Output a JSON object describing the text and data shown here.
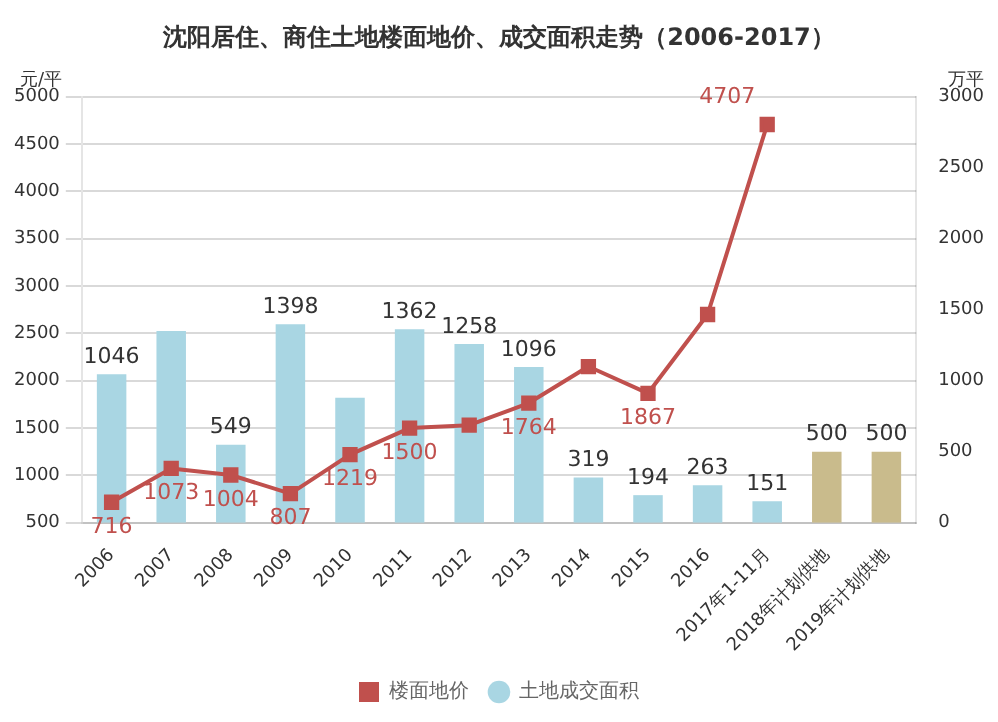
{
  "chart_data": {
    "type": "bar",
    "title": "沈阳居住、商住土地楼面地价、成交面积走势（2006-2017）",
    "ylabel": "元/平",
    "y2label": "万平",
    "categories": [
      "2006",
      "2007",
      "2008",
      "2009",
      "2010",
      "2011",
      "2012",
      "2013",
      "2014",
      "2015",
      "2016",
      "2017年1-11月",
      "2018年计划供地",
      "2019年计划供地"
    ],
    "series": [
      {
        "name": "土地成交面积",
        "axis": "y2",
        "colors": [
          "#a9d6e3",
          "#a9d6e3",
          "#a9d6e3",
          "#a9d6e3",
          "#a9d6e3",
          "#a9d6e3",
          "#a9d6e3",
          "#a9d6e3",
          "#a9d6e3",
          "#a9d6e3",
          "#a9d6e3",
          "#a9d6e3",
          "#c9bb8c",
          "#c9bb8c"
        ],
        "values": [
          1046,
          1350,
          549,
          1398,
          880,
          1362,
          1258,
          1096,
          319,
          194,
          263,
          151,
          500,
          500
        ],
        "value_labels": [
          "1046",
          null,
          "549",
          "1398",
          null,
          "1362",
          "1258",
          "1096",
          "319",
          "194",
          "263",
          "151",
          "500",
          "500"
        ]
      },
      {
        "name": "楼面地价",
        "type": "line",
        "axis": "y",
        "color": "#c0504d",
        "values": [
          716,
          1073,
          1004,
          807,
          1219,
          1500,
          1530,
          1764,
          2150,
          1867,
          2700,
          4707,
          null,
          null
        ],
        "value_labels": [
          "716",
          "1073",
          "1004",
          "807",
          "1219",
          "1500",
          null,
          "1764",
          null,
          "1867",
          null,
          "4707",
          null,
          null
        ]
      }
    ],
    "ylim": [
      500,
      5000
    ],
    "yticks": [
      500,
      1000,
      1500,
      2000,
      2500,
      3000,
      3500,
      4000,
      4500,
      5000
    ],
    "y2lim": [
      0,
      3000
    ],
    "y2ticks": [
      0,
      500,
      1000,
      1500,
      2000,
      2500,
      3000
    ],
    "grid": "y",
    "legend": "bottom",
    "marker": "square",
    "line_style": "solid"
  }
}
